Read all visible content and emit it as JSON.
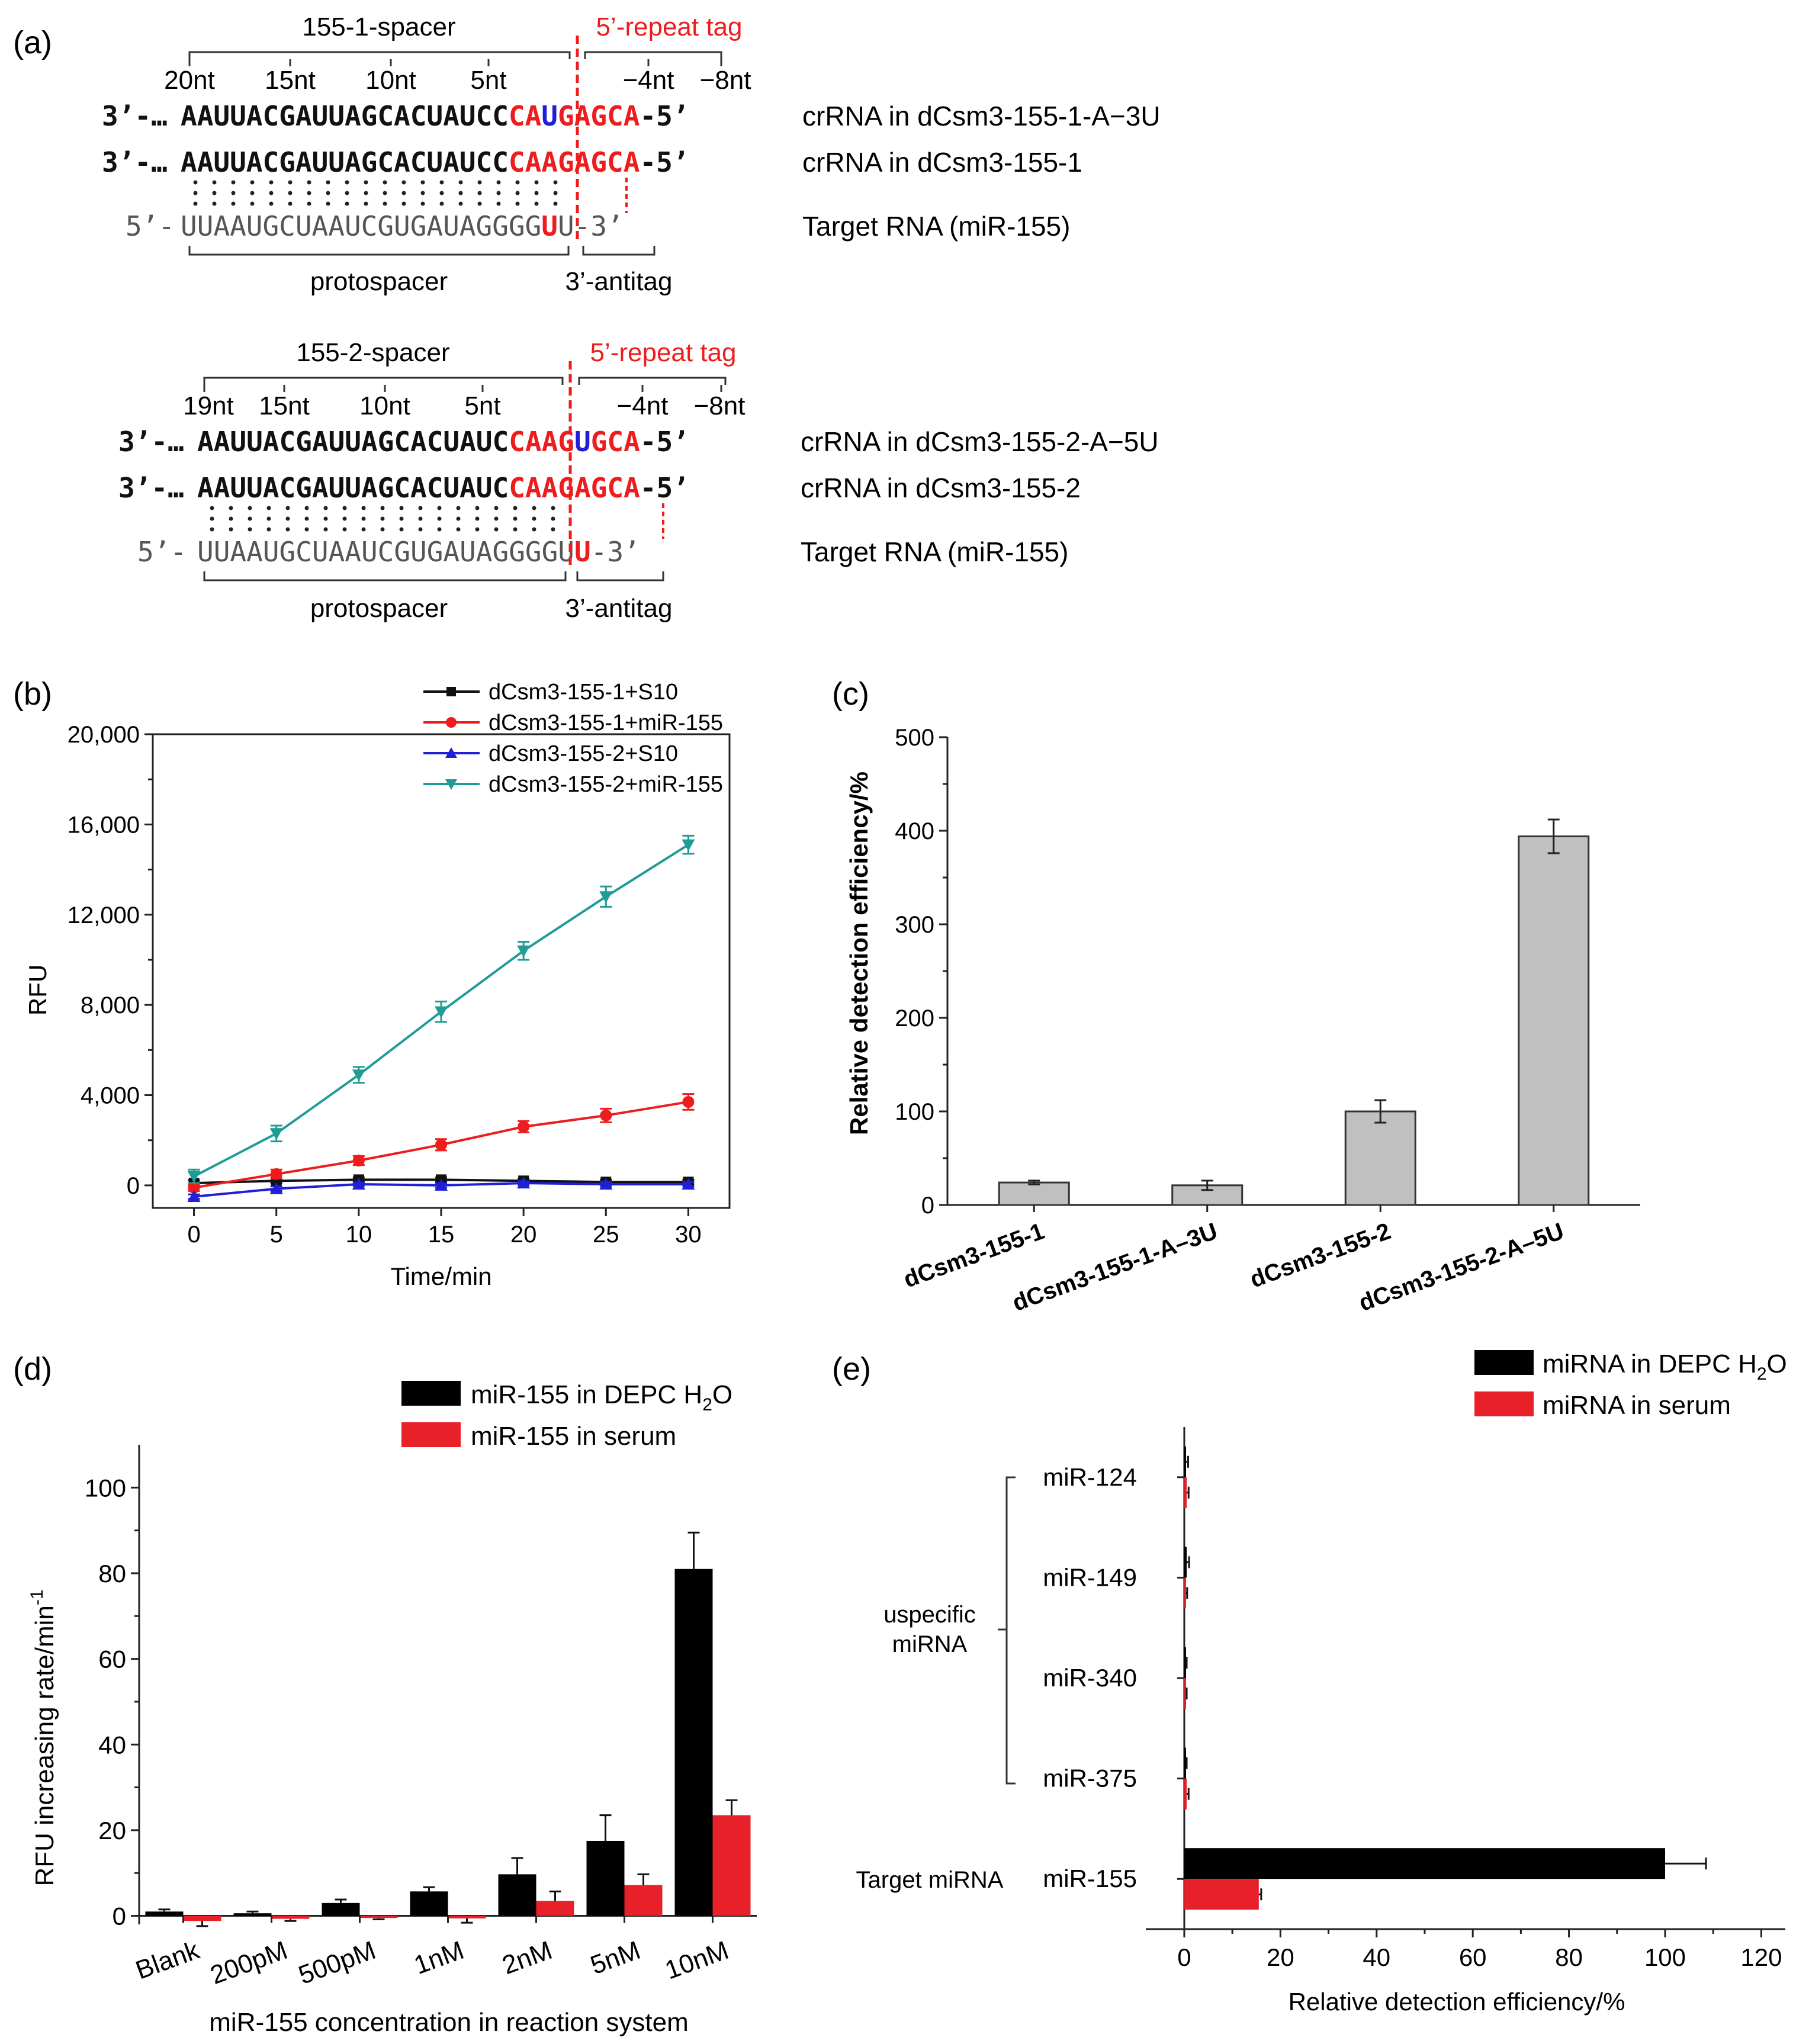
{
  "colors": {
    "black": "#111111",
    "red": "#ee1c1c",
    "blue": "#1f1fd6",
    "teal": "#1f9c96",
    "gray": "#c0c0c0",
    "dred": "#e8202a",
    "dblue": "#2a3fd0"
  },
  "panel_a": {
    "label": "(a)",
    "top": {
      "spacer_label": "155-1-spacer",
      "repeat_label": "5’-repeat tag",
      "ticks": [
        "20nt",
        "15nt",
        "10nt",
        "5nt",
        "−4nt",
        "−8nt"
      ],
      "row1": {
        "prefix": "3’-…",
        "spacer": "AAUUACGAUUAGCACUAUCC",
        "tag_parts": [
          "CA",
          "U",
          "GAGCA"
        ],
        "suffix": "-5’",
        "name": "crRNA in dCsm3-155-1-A−3U"
      },
      "row2": {
        "prefix": "3’-…",
        "spacer": "AAUUACGAUUAGCACUAUCC",
        "tag": "CAAGAGCA",
        "suffix": "-5’",
        "name": "crRNA in dCsm3-155-1"
      },
      "target": {
        "prefix": "5’-",
        "seq": "UUAAUGCUAAUCGUGAUAGGGG",
        "mut": "U",
        "rest": "U-3’",
        "name": "Target RNA (miR-155)"
      },
      "protospacer": "protospacer",
      "antitag": "3’-antitag"
    },
    "bottom": {
      "spacer_label": "155-2-spacer",
      "repeat_label": "5’-repeat tag",
      "ticks": [
        "19nt",
        "15nt",
        "10nt",
        "5nt",
        "−4nt",
        "−8nt"
      ],
      "row1": {
        "prefix": "3’-…",
        "spacer": "AAUUACGAUUAGCACUAUC",
        "tag_parts": [
          "CAAG",
          "U",
          "GCA"
        ],
        "suffix": "-5’",
        "name": "crRNA in dCsm3-155-2-A−5U"
      },
      "row2": {
        "prefix": "3’-…",
        "spacer": "AAUUACGAUUAGCACUAUC",
        "tag": "CAAGAGCA",
        "suffix": "-5’",
        "name": "crRNA in dCsm3-155-2"
      },
      "target": {
        "prefix": "5’-",
        "seq": "UUAAUGCUAAUCGUGAUAGGGGU",
        "mut": "U",
        "rest": "-3’",
        "name": "Target RNA (miR-155)"
      },
      "protospacer": "protospacer",
      "antitag": "3’-antitag"
    }
  },
  "chart_data": [
    {
      "panel": "(b)",
      "type": "line",
      "xlabel": "Time/min",
      "ylabel": "RFU",
      "x": [
        0,
        5,
        10,
        15,
        20,
        25,
        30
      ],
      "xticks": [
        "0",
        "5",
        "10",
        "15",
        "20",
        "25",
        "30"
      ],
      "yticks": [
        "0",
        "4,000",
        "8,000",
        "12,000",
        "16,000",
        "20,000"
      ],
      "ylim": [
        -1000,
        20000
      ],
      "series": [
        {
          "name": "dCsm3-155-1+S10",
          "values": [
            100,
            200,
            250,
            250,
            200,
            150,
            150
          ],
          "errors": [
            120,
            100,
            100,
            100,
            100,
            100,
            100
          ]
        },
        {
          "name": "dCsm3-155-1+miR-155",
          "values": [
            -100,
            500,
            1100,
            1800,
            2600,
            3100,
            3700
          ],
          "errors": [
            150,
            200,
            200,
            250,
            250,
            300,
            350
          ]
        },
        {
          "name": "dCsm3-155-2+S10",
          "values": [
            -500,
            -150,
            50,
            0,
            100,
            50,
            50
          ],
          "errors": [
            100,
            100,
            80,
            100,
            80,
            100,
            100
          ]
        },
        {
          "name": "dCsm3-155-2+miR-155",
          "values": [
            400,
            2300,
            4900,
            7700,
            10400,
            12800,
            15100
          ],
          "errors": [
            300,
            350,
            350,
            450,
            400,
            450,
            400
          ]
        }
      ]
    },
    {
      "panel": "(c)",
      "type": "bar",
      "ylabel": "Relative detection efficiency/%",
      "categories": [
        "dCsm3-155-1",
        "dCsm3-155-1-A–3U",
        "dCsm3-155-2",
        "dCsm3-155-2-A–5U"
      ],
      "values": [
        24,
        21,
        100,
        394
      ],
      "errors": [
        2,
        5,
        12,
        18
      ],
      "yticks": [
        "0",
        "100",
        "200",
        "300",
        "400",
        "500"
      ],
      "ylim": [
        0,
        500
      ]
    },
    {
      "panel": "(d)",
      "type": "bar",
      "xlabel": "miR-155 concentration in reaction system",
      "ylabel": "RFU increasing rate/min",
      "ylabel_sup": "-1",
      "categories": [
        "Blank",
        "200pM",
        "500pM",
        "1nM",
        "2nM",
        "5nM",
        "10nM"
      ],
      "series": [
        {
          "name": "miR-155 in DEPC H2O",
          "values": [
            1,
            0.6,
            3,
            5.7,
            9.7,
            17.5,
            81
          ],
          "errors": [
            0.5,
            0.4,
            0.8,
            1,
            3.8,
            6,
            8.5
          ]
        },
        {
          "name": "miR-155 in serum",
          "values": [
            -1.2,
            -0.7,
            -0.5,
            -0.6,
            3.5,
            7.2,
            23.5
          ],
          "errors": [
            1.2,
            0.5,
            0.3,
            1,
            2.2,
            2.5,
            3.5
          ]
        }
      ],
      "yticks": [
        "0",
        "20",
        "40",
        "60",
        "80",
        "100"
      ],
      "ylim": [
        -2,
        110
      ]
    },
    {
      "panel": "(e)",
      "type": "bar",
      "orientation": "horizontal",
      "xlabel": "Relative detection efficiency/%",
      "categories": [
        "miR-124",
        "miR-149",
        "miR-340",
        "miR-375",
        "miR-155"
      ],
      "group_labels": [
        "uspecific miRNA",
        "Target miRNA"
      ],
      "series": [
        {
          "name": "miRNA in DEPC H2O",
          "values": [
            0.3,
            0.5,
            0.2,
            0.2,
            100
          ],
          "errors": [
            0.5,
            0.5,
            0.3,
            0.3,
            8.5
          ]
        },
        {
          "name": "miRNA in serum",
          "values": [
            0.5,
            0.3,
            0.3,
            0.5,
            15.5
          ],
          "errors": [
            0.4,
            0.3,
            0.2,
            0.4,
            0.5
          ]
        }
      ],
      "xticks": [
        "0",
        "20",
        "40",
        "60",
        "80",
        "100",
        "120"
      ],
      "xlim": [
        -8,
        125
      ]
    }
  ],
  "legends": {
    "d": [
      "miR-155 in DEPC H",
      "2",
      "O",
      "miR-155 in serum"
    ],
    "e": [
      "miRNA in  DEPC H",
      "2",
      "O",
      "miRNA in serum"
    ]
  },
  "group_text": {
    "uspecific_line1": "uspecific",
    "uspecific_line2": "miRNA",
    "target": "Target miRNA"
  }
}
